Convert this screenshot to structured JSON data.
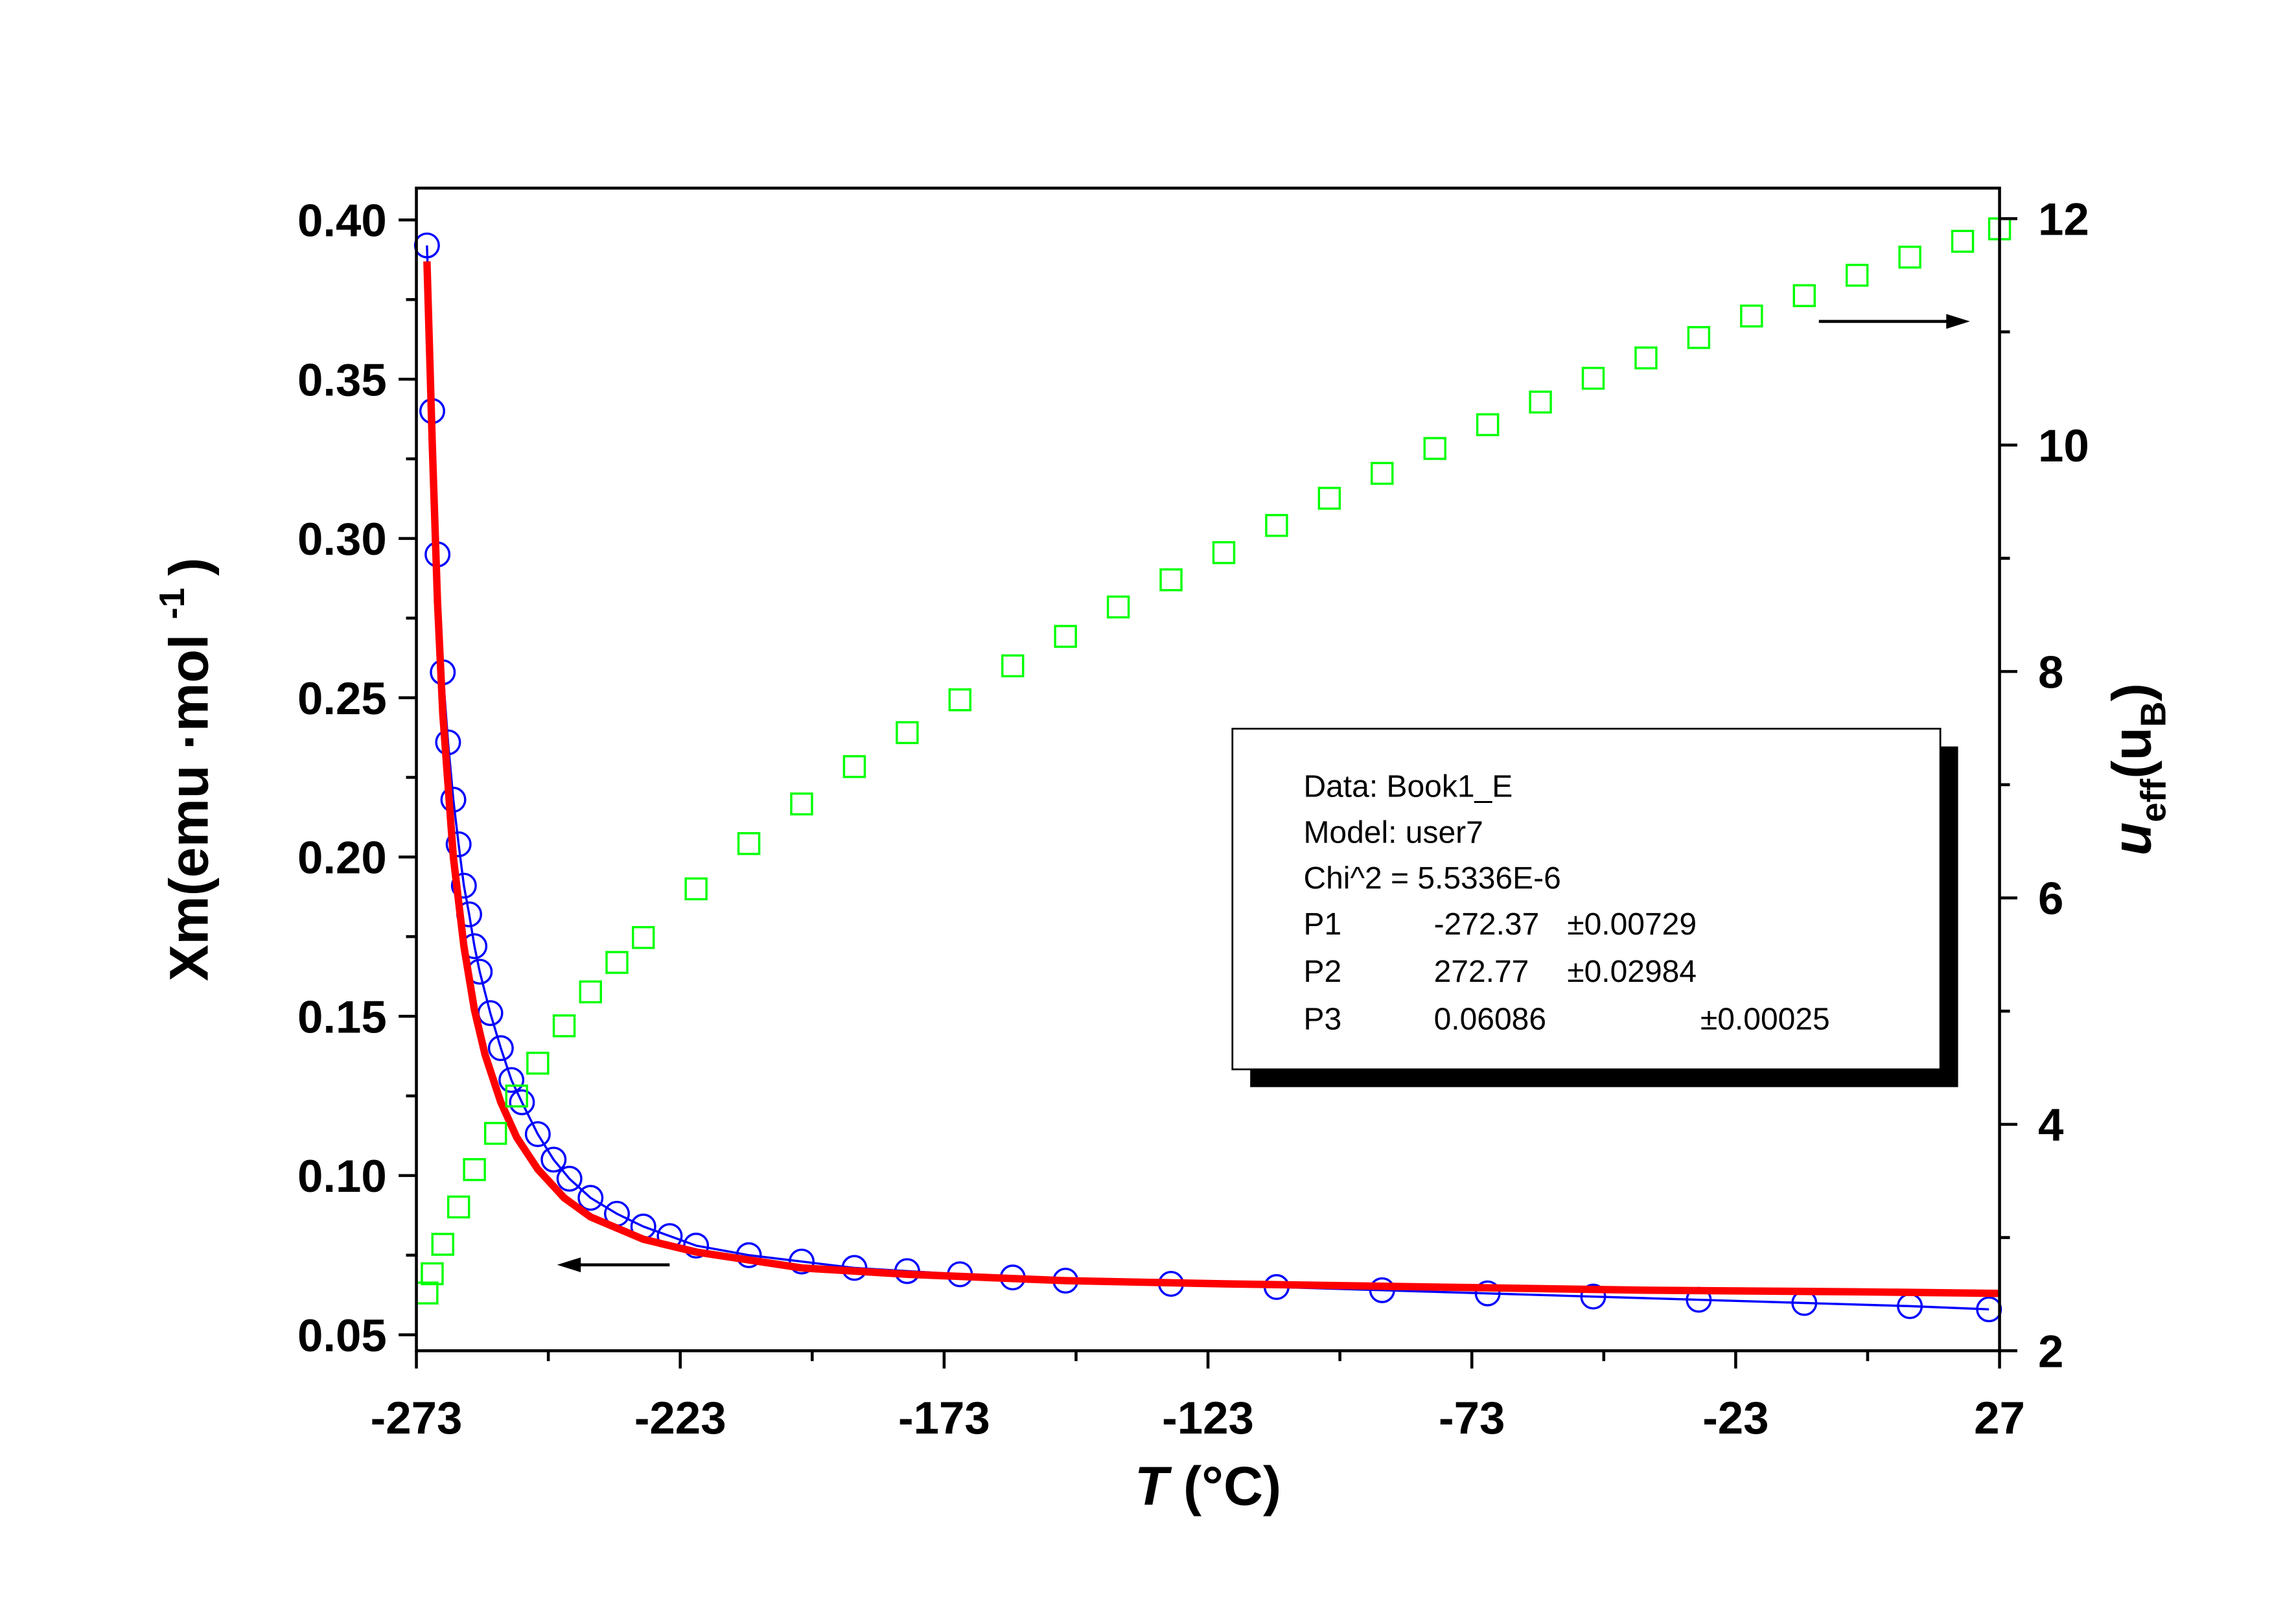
{
  "chart_data": {
    "type": "line",
    "x_label": [
      "T",
      " (°C)"
    ],
    "y_label": [
      "Xm(emu ·mol",
      "-1",
      ")"
    ],
    "y2_label": [
      "u",
      "eff",
      "(u",
      "B",
      ")"
    ],
    "xlim": [
      -273,
      27
    ],
    "xticks": [
      -273,
      -223,
      -173,
      -123,
      -73,
      -23,
      27
    ],
    "xticks_minor": [
      -248,
      -198,
      -148,
      -98,
      -48,
      2
    ],
    "ylim": [
      0.045,
      0.41
    ],
    "yticks": [
      0.05,
      {
        "value": 0.1,
        "label": "0.10"
      },
      0.15,
      {
        "value": 0.2,
        "label": "0.20"
      },
      0.25,
      {
        "value": 0.3,
        "label": "0.30"
      },
      0.35,
      {
        "value": 0.4,
        "label": "0.40"
      }
    ],
    "yticks_minor": [
      0.075,
      0.125,
      0.175,
      0.225,
      0.275,
      0.325,
      0.375
    ],
    "y2lim": [
      2,
      12.27
    ],
    "y2ticks": [
      2,
      4,
      6,
      8,
      10,
      12
    ],
    "y2ticks_minor": [
      3,
      5,
      7,
      9,
      11
    ],
    "series": [
      {
        "color": "#0000ff",
        "marker": "circle",
        "line": true,
        "x": [
          -271,
          -270,
          -269,
          -268,
          -267,
          -266,
          -265,
          -264,
          -263,
          -262,
          -261,
          -259,
          -257,
          -255,
          -253,
          -250,
          -247,
          -244,
          -240,
          -235,
          -230,
          -225,
          -220,
          -210,
          -200,
          -190,
          -180,
          -170,
          -160,
          -150,
          -130,
          -110,
          -90,
          -70,
          -50,
          -30,
          -10,
          10,
          25
        ],
        "values": [
          0.392,
          0.34,
          0.295,
          0.258,
          0.236,
          0.218,
          0.204,
          0.191,
          0.182,
          0.172,
          0.164,
          0.151,
          0.14,
          0.13,
          0.123,
          0.113,
          0.105,
          0.099,
          0.093,
          0.088,
          0.084,
          0.081,
          0.078,
          0.075,
          0.073,
          0.071,
          0.07,
          0.069,
          0.068,
          0.067,
          0.066,
          0.065,
          0.064,
          0.063,
          0.062,
          0.061,
          0.06,
          0.059,
          0.058
        ]
      },
      {
        "color": "#ff0000",
        "marker": "none",
        "line": true,
        "x": [
          -271,
          -270,
          -269,
          -268,
          -266,
          -264,
          -262,
          -260,
          -257,
          -254,
          -250,
          -245,
          -240,
          -230,
          -220,
          -200,
          -180,
          -150,
          -120,
          -80,
          -40,
          0,
          27
        ],
        "values": [
          0.387,
          0.33,
          0.28,
          0.245,
          0.2,
          0.172,
          0.152,
          0.138,
          0.123,
          0.112,
          0.102,
          0.093,
          0.087,
          0.08,
          0.076,
          0.071,
          0.069,
          0.067,
          0.066,
          0.065,
          0.064,
          0.0635,
          0.063
        ]
      },
      {
        "color": "#00ff00",
        "marker": "square",
        "line": false,
        "axis": "y2",
        "x": [
          -271,
          -270,
          -268,
          -265,
          -262,
          -258,
          -254,
          -250,
          -245,
          -240,
          -235,
          -230,
          -220,
          -210,
          -200,
          -190,
          -180,
          -170,
          -160,
          -150,
          -140,
          -130,
          -120,
          -110,
          -100,
          -90,
          -80,
          -70,
          -60,
          -50,
          -40,
          -30,
          -20,
          -10,
          0,
          10,
          20,
          27
        ],
        "values": [
          2.51,
          2.68,
          2.94,
          3.27,
          3.6,
          3.92,
          4.25,
          4.54,
          4.87,
          5.17,
          5.43,
          5.65,
          6.08,
          6.48,
          6.83,
          7.16,
          7.46,
          7.75,
          8.05,
          8.31,
          8.57,
          8.81,
          9.05,
          9.29,
          9.53,
          9.75,
          9.97,
          10.18,
          10.38,
          10.59,
          10.77,
          10.95,
          11.14,
          11.32,
          11.5,
          11.66,
          11.8,
          11.91
        ]
      }
    ],
    "fit_box": {
      "lines": [
        "Data: Book1_E",
        "Model: user7",
        "Chi^2 = 5.5336E-6"
      ],
      "params": [
        {
          "name": "P1",
          "value": "-272.37",
          "error": "±0.00729"
        },
        {
          "name": "P2",
          "value": "272.77",
          "error": "±0.02984"
        },
        {
          "name": "P3",
          "value": "0.06086",
          "error": "±0.00025"
        }
      ]
    }
  }
}
